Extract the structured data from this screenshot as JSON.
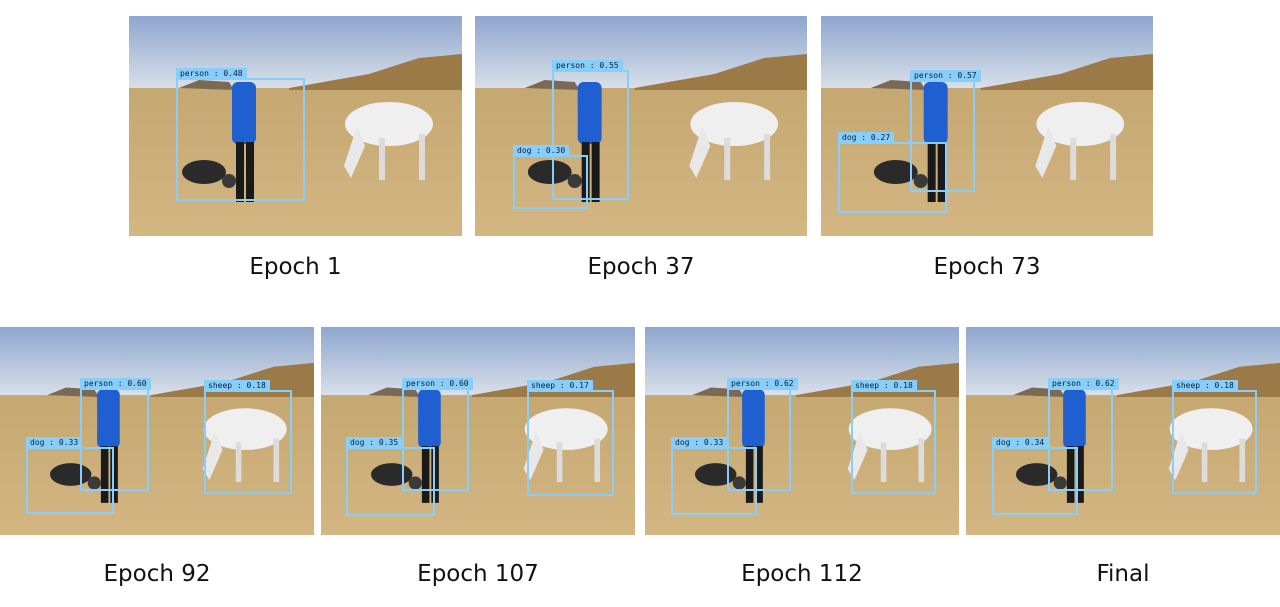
{
  "panels": [
    {
      "caption": "Epoch 1",
      "boxes": [
        {
          "label": "person : 0.48"
        }
      ]
    },
    {
      "caption": "Epoch 37",
      "boxes": [
        {
          "label": "person : 0.55"
        },
        {
          "label": "dog : 0.30"
        }
      ]
    },
    {
      "caption": "Epoch 73",
      "boxes": [
        {
          "label": "person : 0.57"
        },
        {
          "label": "dog : 0.27"
        }
      ]
    },
    {
      "caption": "Epoch 92",
      "boxes": [
        {
          "label": "person : 0.60"
        },
        {
          "label": "sheep : 0.18"
        },
        {
          "label": "dog : 0.33"
        }
      ]
    },
    {
      "caption": "Epoch 107",
      "boxes": [
        {
          "label": "person : 0.60"
        },
        {
          "label": "sheep : 0.17"
        },
        {
          "label": "dog : 0.35"
        }
      ]
    },
    {
      "caption": "Epoch 112",
      "boxes": [
        {
          "label": "person : 0.62"
        },
        {
          "label": "sheep : 0.18"
        },
        {
          "label": "dog : 0.33"
        }
      ]
    },
    {
      "caption": "Final",
      "boxes": [
        {
          "label": "person : 0.62"
        },
        {
          "label": "sheep : 0.18"
        },
        {
          "label": "dog : 0.34"
        }
      ]
    }
  ],
  "colors": {
    "box": "#87cefa",
    "sky": "#9fb4d6",
    "grass": "#c9a870",
    "jacket": "#1f5fd0"
  }
}
